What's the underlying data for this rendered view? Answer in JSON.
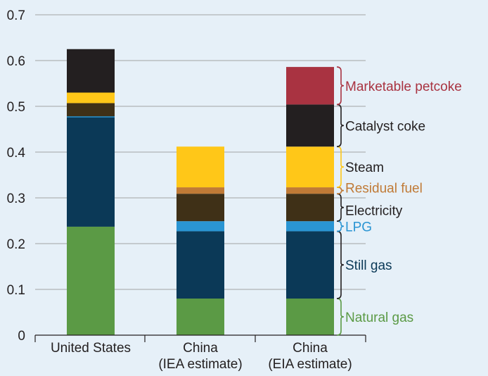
{
  "chart_data": {
    "type": "bar",
    "stacked": true,
    "title": "",
    "xlabel": "",
    "ylabel": "",
    "ylim": [
      0,
      0.7
    ],
    "yticks": [
      "0",
      "0.1",
      "0.2",
      "0.3",
      "0.4",
      "0.5",
      "0.6",
      "0.7"
    ],
    "grid": true,
    "legend": "right-of-last-bar (brace labels)",
    "categories": [
      [
        "United States"
      ],
      [
        "China",
        "(IEA estimate)"
      ],
      [
        "China",
        "(EIA estimate)"
      ]
    ],
    "series": [
      {
        "name": "Natural gas",
        "color": "#5b9a45",
        "values": [
          0.237,
          0.08,
          0.08
        ]
      },
      {
        "name": "Still gas",
        "color": "#0b3957",
        "values": [
          0.24,
          0.147,
          0.147
        ]
      },
      {
        "name": "LPG",
        "color": "#2a95d3",
        "values": [
          0.0,
          0.022,
          0.022
        ]
      },
      {
        "name": "Electricity",
        "color": "#3f3017",
        "values": [
          0.03,
          0.06,
          0.06
        ]
      },
      {
        "name": "Residual fuel",
        "color": "#c07a36",
        "values": [
          0.0,
          0.014,
          0.014
        ]
      },
      {
        "name": "Steam",
        "color": "#ffc718",
        "values": [
          0.023,
          0.089,
          0.089
        ]
      },
      {
        "name": "Catalyst coke",
        "color": "#231f20",
        "values": [
          0.095,
          0.0,
          0.092
        ]
      },
      {
        "name": "Marketable petcoke",
        "color": "#a93341",
        "values": [
          0.0,
          0.0,
          0.082
        ]
      }
    ]
  }
}
